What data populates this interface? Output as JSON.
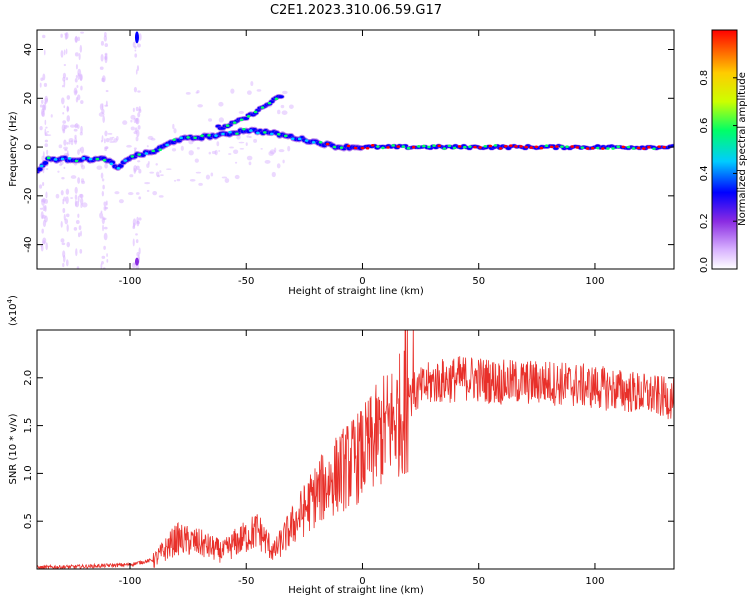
{
  "figure": {
    "title": "C2E1.2023.310.06.59.G17",
    "colors": {
      "snr_line": "#e8302a",
      "colormap": [
        "#ffffff",
        "#d9b3ff",
        "#8a2be2",
        "#0000ff",
        "#00ccff",
        "#00ff66",
        "#ccff00",
        "#ffcc00",
        "#ff0000"
      ]
    }
  },
  "chart_data": [
    {
      "type": "heatmap",
      "title": "",
      "xlabel": "Height of straight line (km)",
      "ylabel": "Frequency (Hz)",
      "xlim": [
        -140,
        134
      ],
      "ylim": [
        -50,
        48
      ],
      "xticks": [
        -100,
        -50,
        0,
        50,
        100
      ],
      "yticks": [
        -40,
        -20,
        0,
        20,
        40
      ],
      "colorbar": {
        "label": "Normalized spectral amplitude",
        "range": [
          0,
          1
        ],
        "ticks": [
          "0.0",
          "0.2",
          "0.4",
          "0.6",
          "0.8"
        ],
        "tick_values": [
          0.0,
          0.2,
          0.4,
          0.6,
          0.8
        ]
      },
      "ridge": {
        "description_points": [
          [
            -140,
            -10
          ],
          [
            -135,
            -5
          ],
          [
            -110,
            -5
          ],
          [
            -105,
            -9
          ],
          [
            -100,
            -4
          ],
          [
            -90,
            -2
          ],
          [
            -80,
            3
          ],
          [
            -70,
            4
          ],
          [
            -60,
            5
          ],
          [
            -50,
            7
          ],
          [
            -40,
            6
          ],
          [
            -30,
            4
          ],
          [
            -20,
            2
          ],
          [
            -10,
            0
          ],
          [
            0,
            0
          ],
          [
            134,
            0
          ]
        ],
        "upper_branch": [
          [
            -60,
            8
          ],
          [
            -50,
            12
          ],
          [
            -45,
            15
          ],
          [
            -40,
            18
          ],
          [
            -35,
            21
          ]
        ]
      }
    },
    {
      "type": "line",
      "title": "",
      "xlabel": "Height of straight line (km)",
      "ylabel": "SNR (10 * v/v)",
      "y_multiplier": "(x10",
      "y_multiplier_exp": "4",
      "y_multiplier_close": ")",
      "xlim": [
        -140,
        134
      ],
      "ylim": [
        0,
        2.5
      ],
      "xticks": [
        -100,
        -50,
        0,
        50,
        100
      ],
      "yticks": [
        0.5,
        1.0,
        1.5,
        2.0
      ],
      "envelope": [
        [
          -140,
          0.02
        ],
        [
          -120,
          0.03
        ],
        [
          -100,
          0.05
        ],
        [
          -90,
          0.1
        ],
        [
          -80,
          0.35
        ],
        [
          -70,
          0.3
        ],
        [
          -60,
          0.2
        ],
        [
          -55,
          0.3
        ],
        [
          -45,
          0.45
        ],
        [
          -38,
          0.2
        ],
        [
          -30,
          0.5
        ],
        [
          -20,
          0.85
        ],
        [
          -10,
          1.1
        ],
        [
          0,
          1.3
        ],
        [
          10,
          1.6
        ],
        [
          20,
          1.85
        ],
        [
          30,
          2.0
        ],
        [
          45,
          2.05
        ],
        [
          60,
          2.0
        ],
        [
          80,
          2.0
        ],
        [
          100,
          1.95
        ],
        [
          115,
          1.9
        ],
        [
          134,
          1.82
        ]
      ]
    }
  ]
}
